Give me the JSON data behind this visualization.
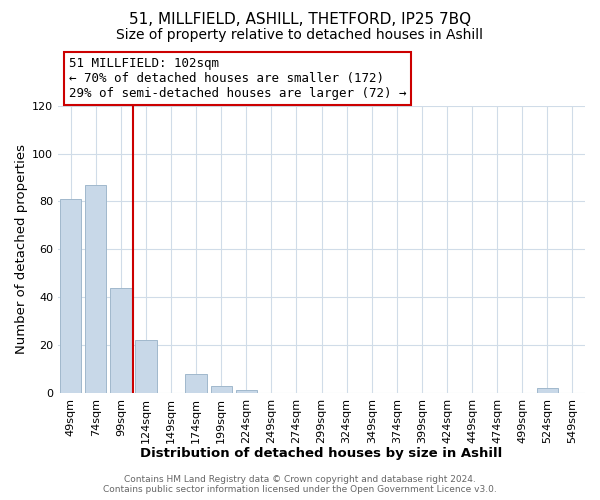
{
  "title": "51, MILLFIELD, ASHILL, THETFORD, IP25 7BQ",
  "subtitle": "Size of property relative to detached houses in Ashill",
  "xlabel": "Distribution of detached houses by size in Ashill",
  "ylabel": "Number of detached properties",
  "footnote1": "Contains HM Land Registry data © Crown copyright and database right 2024.",
  "footnote2": "Contains public sector information licensed under the Open Government Licence v3.0.",
  "bar_labels": [
    "49sqm",
    "74sqm",
    "99sqm",
    "124sqm",
    "149sqm",
    "174sqm",
    "199sqm",
    "224sqm",
    "249sqm",
    "274sqm",
    "299sqm",
    "324sqm",
    "349sqm",
    "374sqm",
    "399sqm",
    "424sqm",
    "449sqm",
    "474sqm",
    "499sqm",
    "524sqm",
    "549sqm"
  ],
  "bar_values": [
    81,
    87,
    44,
    22,
    0,
    8,
    3,
    1,
    0,
    0,
    0,
    0,
    0,
    0,
    0,
    0,
    0,
    0,
    0,
    2,
    0
  ],
  "bar_color": "#c8d8e8",
  "bar_edge_color": "#a0b8cc",
  "vline_x_index": 2,
  "vline_color": "#cc0000",
  "annotation_line1": "51 MILLFIELD: 102sqm",
  "annotation_line2": "← 70% of detached houses are smaller (172)",
  "annotation_line3": "29% of semi-detached houses are larger (72) →",
  "annotation_box_facecolor": "white",
  "annotation_box_edgecolor": "#cc0000",
  "ylim": [
    0,
    120
  ],
  "yticks": [
    0,
    20,
    40,
    60,
    80,
    100,
    120
  ],
  "background_color": "white",
  "grid_color": "#d0dce8",
  "title_fontsize": 11,
  "subtitle_fontsize": 10,
  "axis_label_fontsize": 9.5,
  "tick_fontsize": 8,
  "annotation_fontsize": 9,
  "footnote_fontsize": 6.5,
  "footnote_color": "#666666"
}
